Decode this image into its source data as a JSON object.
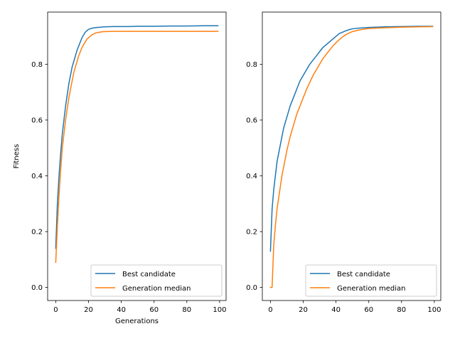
{
  "chart_data": [
    {
      "type": "line",
      "xlabel": "Generations",
      "ylabel": "Fitness",
      "xlim": [
        -4.95,
        103.95
      ],
      "ylim": [
        -0.047,
        0.987
      ],
      "xticks": [
        0,
        20,
        40,
        60,
        80,
        100
      ],
      "yticks": [
        0.0,
        0.2,
        0.4,
        0.6,
        0.8
      ],
      "legend": "lower-right",
      "series": [
        {
          "name": "Best candidate",
          "color": "#1f77b4",
          "x": [
            0,
            1,
            2,
            3,
            4,
            5,
            6,
            7,
            8,
            9,
            10,
            11,
            12,
            13,
            14,
            15,
            16,
            17,
            18,
            19,
            20,
            21,
            22,
            23,
            24,
            25,
            26,
            27,
            28,
            29,
            30,
            35,
            40,
            45,
            50,
            60,
            70,
            80,
            90,
            99
          ],
          "y": [
            0.14,
            0.3,
            0.4,
            0.48,
            0.55,
            0.6,
            0.65,
            0.69,
            0.73,
            0.76,
            0.79,
            0.81,
            0.83,
            0.85,
            0.865,
            0.88,
            0.895,
            0.905,
            0.915,
            0.92,
            0.925,
            0.927,
            0.929,
            0.93,
            0.931,
            0.932,
            0.932,
            0.933,
            0.933,
            0.934,
            0.934,
            0.935,
            0.935,
            0.935,
            0.936,
            0.936,
            0.937,
            0.937,
            0.938,
            0.938
          ]
        },
        {
          "name": "Generation median",
          "color": "#ff7f0e",
          "x": [
            0,
            1,
            2,
            3,
            4,
            5,
            6,
            7,
            8,
            9,
            10,
            11,
            12,
            13,
            14,
            15,
            16,
            17,
            18,
            19,
            20,
            21,
            22,
            23,
            24,
            25,
            26,
            27,
            28,
            29,
            30,
            35,
            40,
            45,
            50,
            60,
            70,
            80,
            90,
            99
          ],
          "y": [
            0.09,
            0.22,
            0.33,
            0.42,
            0.5,
            0.55,
            0.6,
            0.64,
            0.68,
            0.71,
            0.74,
            0.77,
            0.79,
            0.81,
            0.83,
            0.845,
            0.86,
            0.87,
            0.88,
            0.89,
            0.895,
            0.9,
            0.905,
            0.908,
            0.911,
            0.913,
            0.914,
            0.915,
            0.916,
            0.917,
            0.917,
            0.918,
            0.918,
            0.918,
            0.918,
            0.918,
            0.918,
            0.918,
            0.918,
            0.918
          ]
        }
      ]
    },
    {
      "type": "line",
      "xlabel": "",
      "ylabel": "",
      "xlim": [
        -4.95,
        103.95
      ],
      "ylim": [
        -0.047,
        0.987
      ],
      "xticks": [
        0,
        20,
        40,
        60,
        80,
        100
      ],
      "yticks": [
        0.0,
        0.2,
        0.4,
        0.6,
        0.8
      ],
      "legend": "lower-right",
      "series": [
        {
          "name": "Best candidate",
          "color": "#1f77b4",
          "x": [
            0,
            1,
            2,
            3,
            4,
            5,
            6,
            7,
            8,
            9,
            10,
            12,
            14,
            16,
            18,
            20,
            22,
            24,
            26,
            28,
            30,
            32,
            34,
            36,
            38,
            40,
            42,
            44,
            46,
            48,
            50,
            55,
            60,
            70,
            80,
            90,
            99
          ],
          "y": [
            0.13,
            0.28,
            0.35,
            0.4,
            0.45,
            0.48,
            0.51,
            0.54,
            0.57,
            0.59,
            0.61,
            0.65,
            0.68,
            0.71,
            0.74,
            0.76,
            0.78,
            0.8,
            0.815,
            0.83,
            0.845,
            0.86,
            0.87,
            0.88,
            0.89,
            0.9,
            0.91,
            0.915,
            0.92,
            0.924,
            0.927,
            0.93,
            0.932,
            0.934,
            0.935,
            0.936,
            0.936
          ]
        },
        {
          "name": "Generation median",
          "color": "#ff7f0e",
          "x": [
            0,
            1,
            2,
            3,
            4,
            5,
            6,
            7,
            8,
            9,
            10,
            12,
            14,
            16,
            18,
            20,
            22,
            24,
            26,
            28,
            30,
            32,
            34,
            36,
            38,
            40,
            42,
            44,
            46,
            48,
            50,
            55,
            60,
            70,
            80,
            90,
            99
          ],
          "y": [
            0.0,
            0.0,
            0.15,
            0.22,
            0.28,
            0.32,
            0.36,
            0.4,
            0.43,
            0.46,
            0.49,
            0.54,
            0.58,
            0.62,
            0.65,
            0.68,
            0.71,
            0.735,
            0.76,
            0.78,
            0.8,
            0.82,
            0.835,
            0.85,
            0.865,
            0.877,
            0.888,
            0.898,
            0.906,
            0.912,
            0.917,
            0.924,
            0.928,
            0.931,
            0.933,
            0.934,
            0.935
          ]
        }
      ]
    }
  ]
}
